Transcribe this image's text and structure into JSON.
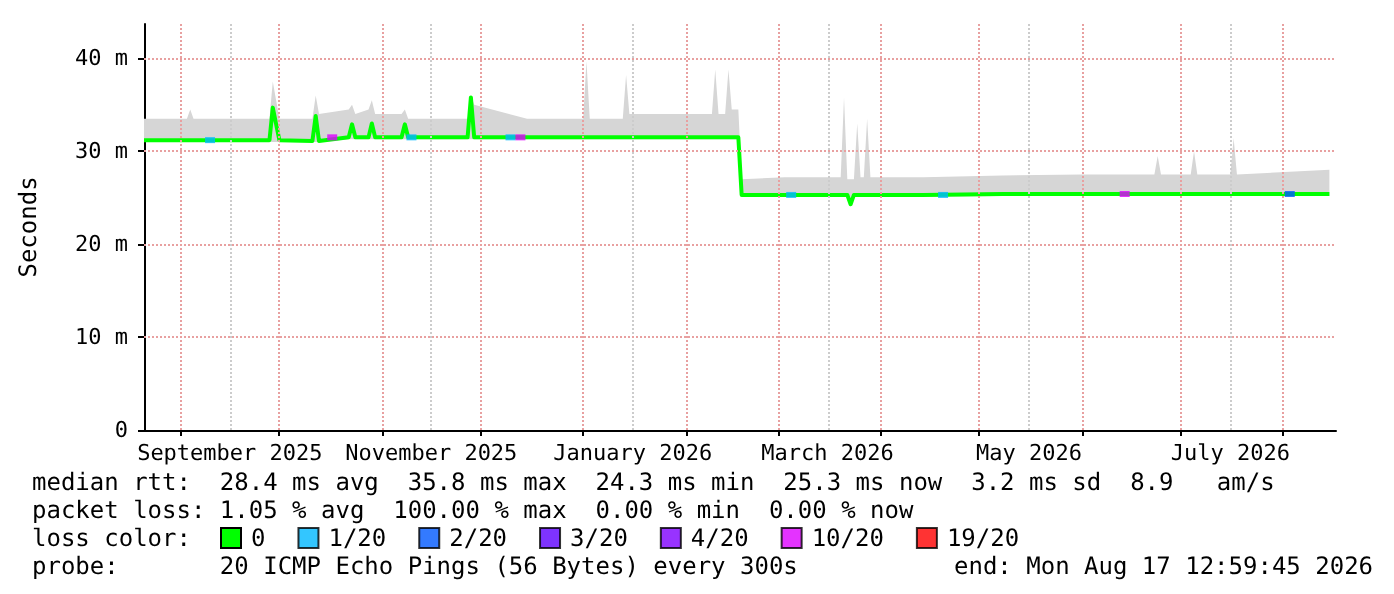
{
  "chart_data": {
    "type": "line",
    "ylabel": "Seconds",
    "xlim": [
      "2025-08-21",
      "2026-08-17"
    ],
    "xticks": [
      {
        "value": "2025-09-01",
        "label": null
      },
      {
        "value": "2025-09-16",
        "label": "September 2025"
      },
      {
        "value": "2025-10-01",
        "label": null
      },
      {
        "value": "2025-11-01",
        "label": null
      },
      {
        "value": "2025-11-16",
        "label": "November 2025"
      },
      {
        "value": "2025-12-01",
        "label": null
      },
      {
        "value": "2026-01-01",
        "label": null
      },
      {
        "value": "2026-01-16",
        "label": "January 2026"
      },
      {
        "value": "2026-02-01",
        "label": null
      },
      {
        "value": "2026-03-01",
        "label": null
      },
      {
        "value": "2026-03-16",
        "label": "March 2026"
      },
      {
        "value": "2026-04-01",
        "label": null
      },
      {
        "value": "2026-05-01",
        "label": null
      },
      {
        "value": "2026-05-16",
        "label": "May 2026"
      },
      {
        "value": "2026-06-01",
        "label": null
      },
      {
        "value": "2026-07-01",
        "label": null
      },
      {
        "value": "2026-07-16",
        "label": "July 2026"
      },
      {
        "value": "2026-08-01",
        "label": null
      }
    ],
    "ylim": [
      0,
      43.7
    ],
    "yticks": [
      {
        "value": 0,
        "label": "0"
      },
      {
        "value": 10,
        "label": "10 m"
      },
      {
        "value": 20,
        "label": "20 m"
      },
      {
        "value": 30,
        "label": "30 m"
      },
      {
        "value": 40,
        "label": "40 m"
      }
    ],
    "grid": true,
    "legend": "bottom",
    "line_style": "solid",
    "series": [
      {
        "name": "0",
        "color": "#00ff00",
        "x": [
          "2025-08-21",
          "2025-09-03",
          "2025-09-04",
          "2025-09-05",
          "2025-09-28",
          "2025-09-29",
          "2025-10-01",
          "2025-10-11",
          "2025-10-12",
          "2025-10-13",
          "2025-10-22",
          "2025-10-23",
          "2025-10-24",
          "2025-10-28",
          "2025-10-29",
          "2025-10-30",
          "2025-11-07",
          "2025-11-08",
          "2025-11-09",
          "2025-11-27",
          "2025-11-28",
          "2025-11-29",
          "2025-12-15",
          "2026-01-01",
          "2026-01-02",
          "2026-01-03",
          "2026-01-13",
          "2026-01-14",
          "2026-01-15",
          "2026-02-09",
          "2026-02-10",
          "2026-02-11",
          "2026-02-13",
          "2026-02-14",
          "2026-02-15",
          "2026-02-17",
          "2026-02-18",
          "2026-03-03",
          "2026-03-20",
          "2026-03-21",
          "2026-03-22",
          "2026-03-23",
          "2026-03-24",
          "2026-03-25",
          "2026-03-26",
          "2026-03-27",
          "2026-03-28",
          "2026-03-29",
          "2026-04-14",
          "2026-05-08",
          "2026-06-01",
          "2026-06-23",
          "2026-06-24",
          "2026-06-25",
          "2026-07-04",
          "2026-07-05",
          "2026-07-06",
          "2026-07-16",
          "2026-07-17",
          "2026-07-18",
          "2026-08-15"
        ],
        "values": [
          31.2,
          31.2,
          31.2,
          31.2,
          31.2,
          34.7,
          31.2,
          31.1,
          33.8,
          31.1,
          31.5,
          32.9,
          31.5,
          31.5,
          33.0,
          31.5,
          31.5,
          32.9,
          31.5,
          31.5,
          35.8,
          31.5,
          31.5,
          31.5,
          31.5,
          31.5,
          31.5,
          31.5,
          31.5,
          31.5,
          31.5,
          31.5,
          31.5,
          31.5,
          31.5,
          31.5,
          25.3,
          25.3,
          25.3,
          25.3,
          25.3,
          24.3,
          25.3,
          25.3,
          25.3,
          25.3,
          25.3,
          25.3,
          25.3,
          25.4,
          25.4,
          25.4,
          25.4,
          25.4,
          25.4,
          25.4,
          25.4,
          25.4,
          25.4,
          25.4,
          25.4
        ],
        "lower": [
          31.0,
          31.0,
          31.0,
          31.0,
          31.0,
          31.0,
          31.0,
          31.0,
          31.0,
          31.0,
          31.3,
          31.3,
          31.3,
          31.3,
          31.3,
          31.3,
          31.3,
          31.3,
          31.3,
          31.3,
          31.3,
          31.3,
          31.3,
          31.3,
          31.3,
          31.3,
          31.3,
          31.3,
          31.3,
          31.3,
          31.3,
          31.3,
          31.3,
          31.3,
          31.3,
          31.3,
          25.1,
          25.1,
          25.1,
          25.1,
          25.1,
          24.1,
          25.1,
          25.1,
          25.1,
          25.1,
          25.1,
          25.1,
          25.1,
          25.2,
          25.2,
          25.2,
          25.2,
          25.2,
          25.2,
          25.2,
          25.2,
          25.2,
          25.2,
          25.2,
          25.2
        ],
        "upper": [
          33.5,
          33.5,
          34.5,
          33.5,
          33.5,
          37.5,
          33.5,
          33.5,
          36.0,
          34.0,
          34.5,
          35.0,
          34.0,
          34.5,
          35.5,
          34.0,
          34.0,
          34.5,
          33.5,
          33.5,
          36.0,
          35.0,
          33.5,
          33.5,
          39.7,
          33.5,
          33.5,
          38.2,
          34.0,
          34.0,
          38.8,
          34.0,
          34.0,
          38.8,
          34.5,
          34.5,
          27.0,
          27.2,
          27.2,
          35.8,
          27.0,
          27.0,
          27.0,
          33.0,
          27.2,
          27.2,
          33.5,
          27.2,
          27.2,
          27.4,
          27.5,
          27.5,
          29.5,
          27.5,
          27.5,
          30.0,
          27.5,
          27.5,
          31.4,
          27.5,
          28.0
        ]
      },
      {
        "name": "1/20",
        "color": "#00b8ff",
        "type": "scatter",
        "marker": "square",
        "x": [
          "2025-09-10",
          "2025-11-10",
          "2025-12-10",
          "2026-03-05",
          "2026-04-20"
        ],
        "values": [
          31.2,
          31.5,
          31.5,
          25.3,
          25.3
        ]
      },
      {
        "name": "2/20",
        "color": "#0059ff",
        "type": "scatter",
        "marker": "square",
        "x": [
          "2026-08-03"
        ],
        "values": [
          25.4
        ]
      },
      {
        "name": "3/20",
        "color": "#5e00ff",
        "type": "scatter"
      },
      {
        "name": "4/20",
        "color": "#7e00ff",
        "type": "scatter"
      },
      {
        "name": "10/20",
        "color": "#dd00ff",
        "type": "scatter",
        "marker": "square",
        "x": [
          "2025-10-17",
          "2025-12-13",
          "2026-06-14"
        ],
        "values": [
          31.5,
          31.5,
          25.4
        ]
      },
      {
        "name": "19/20",
        "color": "#ff0000",
        "type": "scatter"
      }
    ],
    "annotations": [
      "median rtt:  28.4 ms avg  35.8 ms max  24.3 ms min  25.3 ms now  3.2 ms sd  8.9   am/s",
      "packet loss: 1.05 % avg  100.00 % max  0.00 % min  0.00 % now",
      "loss color:",
      "probe:       20 ICMP Echo Pings (56 Bytes) every 300s",
      "end: Mon Aug 17 12:59:45 2026"
    ]
  }
}
